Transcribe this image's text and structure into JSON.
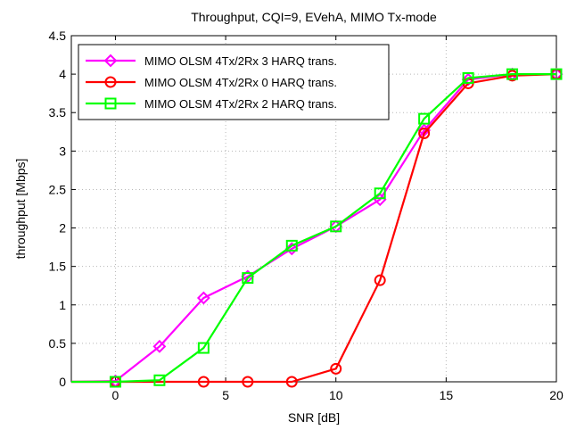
{
  "chart_data": {
    "type": "line",
    "title": "Throughput, CQI=9, EVehA, MIMO Tx-mode",
    "xlabel": "SNR [dB]",
    "ylabel": "throughput [Mbps]",
    "xlim": [
      -2,
      20
    ],
    "ylim": [
      0,
      4.5
    ],
    "xticks": [
      0,
      5,
      10,
      15,
      20
    ],
    "yticks": [
      0,
      0.5,
      1,
      1.5,
      2,
      2.5,
      3,
      3.5,
      4,
      4.5
    ],
    "xtick_labels": [
      "0",
      "5",
      "10",
      "15",
      "20"
    ],
    "ytick_labels": [
      "0",
      "0.5",
      "1",
      "1.5",
      "2",
      "2.5",
      "3",
      "3.5",
      "4",
      "4.5"
    ],
    "grid": true,
    "legend_position": "top-left",
    "series": [
      {
        "name": "MIMO OLSM 4Tx/2Rx 3 HARQ trans.",
        "color": "#ff00ff",
        "marker": "diamond",
        "x": [
          -2,
          0,
          2,
          4,
          6,
          8,
          10,
          12,
          14,
          16,
          18,
          20
        ],
        "y": [
          0,
          0.01,
          0.46,
          1.09,
          1.37,
          1.73,
          2.02,
          2.37,
          3.27,
          3.93,
          4.0,
          4.0
        ],
        "marker_x": [
          0,
          2,
          4,
          6,
          8,
          10,
          12,
          14,
          16,
          18,
          20
        ]
      },
      {
        "name": "MIMO OLSM 4Tx/2Rx 0 HARQ trans.",
        "color": "#ff0000",
        "marker": "circle",
        "x": [
          -2,
          0,
          2,
          4,
          6,
          8,
          10,
          12,
          14,
          16,
          18,
          20
        ],
        "y": [
          0,
          0,
          0,
          0,
          0,
          0,
          0.17,
          1.32,
          3.23,
          3.88,
          3.98,
          4.0
        ],
        "marker_x": [
          0,
          4,
          6,
          8,
          10,
          12,
          14,
          16,
          18,
          20
        ]
      },
      {
        "name": "MIMO OLSM 4Tx/2Rx 2 HARQ trans.",
        "color": "#00ff00",
        "marker": "square",
        "x": [
          -2,
          0,
          2,
          4,
          6,
          8,
          10,
          12,
          14,
          16,
          18,
          20
        ],
        "y": [
          0,
          0,
          0.02,
          0.44,
          1.35,
          1.77,
          2.02,
          2.45,
          3.42,
          3.95,
          4.0,
          4.0
        ],
        "marker_x": [
          0,
          2,
          4,
          6,
          8,
          10,
          12,
          14,
          16,
          18,
          20
        ]
      }
    ]
  }
}
